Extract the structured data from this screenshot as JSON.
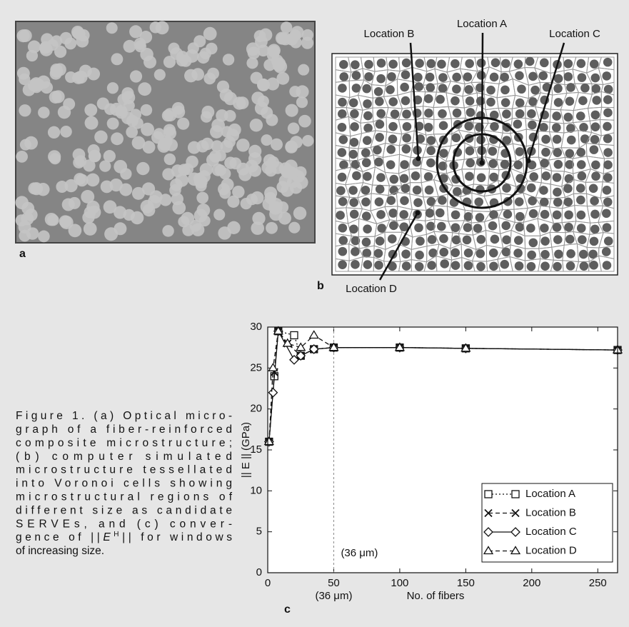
{
  "panels": {
    "a": {
      "label": "a"
    },
    "b": {
      "label": "b",
      "locations": [
        "Location A",
        "Location B",
        "Location C",
        "Location D"
      ]
    },
    "c": {
      "label": "c"
    }
  },
  "caption": {
    "lines": [
      "Figure 1. (a) Optical micro-",
      "graph of a fiber-reinforced",
      "composite microstructure;",
      "(b) computer simulated",
      "microstructure tessellated",
      "into Voronoi cells showing",
      "microstructural regions of",
      "different size as candidate",
      "SERVEs, and (c) conver-"
    ],
    "formula_line": {
      "pre": "gence of ||",
      "var": "E",
      "sup": "H",
      "post": "|| for windows"
    },
    "last_line": "of increasing size."
  },
  "chart_data": {
    "type": "line",
    "x_label": "No. of fibers",
    "y_label": "|| E || (GPa)",
    "xlim": [
      0,
      265
    ],
    "ylim": [
      0,
      30
    ],
    "xticks": [
      0,
      50,
      100,
      150,
      200,
      250
    ],
    "yticks": [
      0,
      5,
      10,
      15,
      20,
      25,
      30
    ],
    "reference_line_x": 50,
    "annotations": [
      "(36 μm)",
      "(36 μm)"
    ],
    "legend": "lower right",
    "series": [
      {
        "name": "Location A",
        "color": "#111111",
        "marker": "square",
        "dash": "dotted",
        "x": [
          1,
          5,
          8,
          20,
          25,
          35,
          50,
          100,
          150,
          265
        ],
        "values": [
          16,
          24,
          29.5,
          29,
          26.5,
          27.3,
          27.5,
          27.5,
          27.4,
          27.2
        ]
      },
      {
        "name": "Location B",
        "color": "#111111",
        "marker": "x",
        "dash": "dashed",
        "x": [
          1,
          5,
          8,
          15,
          25,
          35,
          50,
          100,
          150,
          265
        ],
        "values": [
          16,
          24.5,
          29.5,
          28,
          26.5,
          27.3,
          27.5,
          27.5,
          27.4,
          27.2
        ]
      },
      {
        "name": "Location C",
        "color": "#111111",
        "marker": "diamond",
        "dash": "solid",
        "x": [
          1,
          4,
          8,
          20,
          25,
          35,
          50,
          100,
          150,
          265
        ],
        "values": [
          16,
          22,
          29.5,
          26,
          26.5,
          27.3,
          27.5,
          27.5,
          27.4,
          27.2
        ]
      },
      {
        "name": "Location D",
        "color": "#111111",
        "marker": "triangle",
        "dash": "dashed",
        "x": [
          1,
          4,
          8,
          15,
          25,
          35,
          50,
          100,
          150,
          265
        ],
        "values": [
          16,
          25,
          29.5,
          28,
          27.5,
          29,
          27.5,
          27.5,
          27.4,
          27.2
        ]
      }
    ]
  }
}
